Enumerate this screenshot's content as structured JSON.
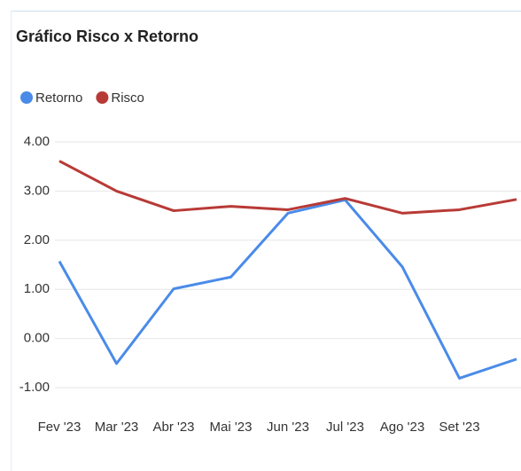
{
  "chart_data": {
    "type": "line",
    "title": "Gráfico Risco x Retorno",
    "categories": [
      "Fev '23",
      "Mar '23",
      "Abr '23",
      "Mai '23",
      "Jun '23",
      "Jul '23",
      "Ago '23",
      "Set '23",
      null
    ],
    "series": [
      {
        "name": "Retorno",
        "color": "#4a8be8",
        "values": [
          1.57,
          -0.51,
          1.01,
          1.25,
          2.55,
          2.82,
          1.46,
          -0.81,
          -0.42
        ]
      },
      {
        "name": "Risco",
        "color": "#b83a36",
        "values": [
          3.61,
          3.0,
          2.6,
          2.69,
          2.62,
          2.85,
          2.55,
          2.62,
          2.83
        ]
      }
    ],
    "ylim": [
      -1,
      4
    ],
    "yticks": [
      {
        "value": 4,
        "label": "4.00"
      },
      {
        "value": 3,
        "label": "3.00"
      },
      {
        "value": 2,
        "label": "2.00"
      },
      {
        "value": 1,
        "label": "1.00"
      },
      {
        "value": 0,
        "label": "0.00"
      },
      {
        "value": -1,
        "label": "-1.00"
      }
    ],
    "grid": true,
    "legend": "top-left"
  }
}
